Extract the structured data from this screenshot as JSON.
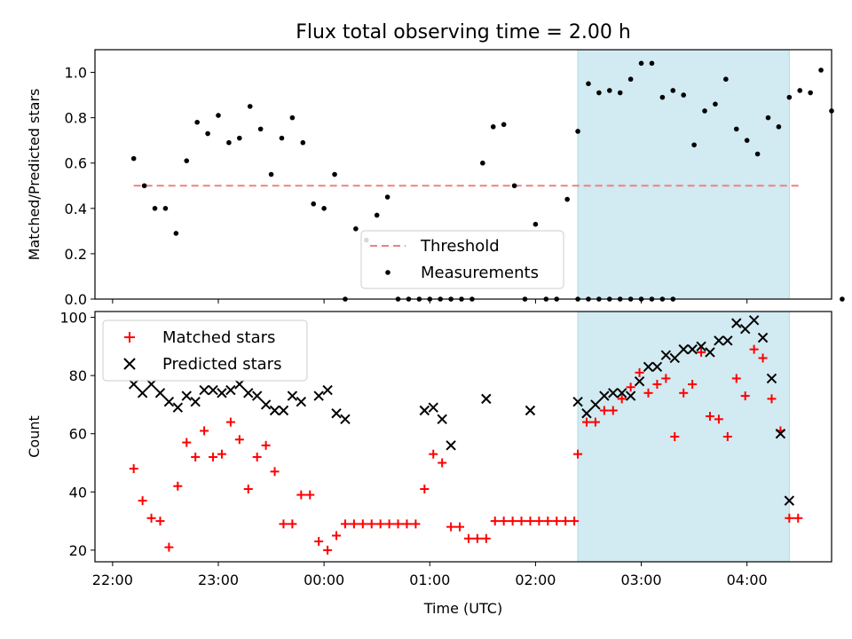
{
  "figure_title": "Flux total observing time = 2.00 h",
  "colors": {
    "shade": "#add8e6",
    "threshold": "#f08080",
    "measurement": "#000000",
    "matched": "#ff0000",
    "predicted": "#000000"
  },
  "chart_data": [
    {
      "type": "scatter",
      "title": "Flux total observing time = 2.00 h",
      "xlabel": "",
      "ylabel": "Matched/Predicted stars",
      "x_axis": "time (UTC), axis from 21:50 to 04:48",
      "ylim": [
        0,
        1.1
      ],
      "yticks": [
        "0.0",
        "0.2",
        "0.4",
        "0.6",
        "0.8",
        "1.0"
      ],
      "shaded_interval": [
        "02:24",
        "04:24"
      ],
      "threshold": {
        "name": "Threshold",
        "value": 0.5,
        "x_range": [
          "22:12",
          "04:30"
        ]
      },
      "legend": {
        "position": "lower-center",
        "entries": [
          "Threshold",
          "Measurements"
        ]
      },
      "series": [
        {
          "name": "Measurements",
          "points": [
            [
              "22:12",
              0.62
            ],
            [
              "22:18",
              0.5
            ],
            [
              "22:24",
              0.4
            ],
            [
              "22:30",
              0.4
            ],
            [
              "22:36",
              0.29
            ],
            [
              "22:42",
              0.61
            ],
            [
              "22:48",
              0.78
            ],
            [
              "22:54",
              0.73
            ],
            [
              "23:00",
              0.81
            ],
            [
              "23:06",
              0.69
            ],
            [
              "23:12",
              0.71
            ],
            [
              "23:18",
              0.85
            ],
            [
              "23:24",
              0.75
            ],
            [
              "23:30",
              0.55
            ],
            [
              "23:36",
              0.71
            ],
            [
              "23:42",
              0.8
            ],
            [
              "23:48",
              0.69
            ],
            [
              "23:54",
              0.42
            ],
            [
              "00:00",
              0.4
            ],
            [
              "00:06",
              0.55
            ],
            [
              "00:12",
              0.0
            ],
            [
              "00:18",
              0.31
            ],
            [
              "00:24",
              0.26
            ],
            [
              "00:30",
              0.37
            ],
            [
              "00:36",
              0.45
            ],
            [
              "00:42",
              0.0
            ],
            [
              "00:48",
              0.0
            ],
            [
              "00:54",
              0.0
            ],
            [
              "01:00",
              0.0
            ],
            [
              "01:06",
              0.0
            ],
            [
              "01:12",
              0.0
            ],
            [
              "01:18",
              0.0
            ],
            [
              "01:24",
              0.0
            ],
            [
              "01:30",
              0.6
            ],
            [
              "01:36",
              0.76
            ],
            [
              "01:42",
              0.77
            ],
            [
              "01:48",
              0.5
            ],
            [
              "01:54",
              0.0
            ],
            [
              "02:00",
              0.33
            ],
            [
              "02:06",
              0.0
            ],
            [
              "02:12",
              0.0
            ],
            [
              "02:18",
              0.44
            ],
            [
              "02:24",
              0.0
            ],
            [
              "02:30",
              0.0
            ],
            [
              "02:36",
              0.0
            ],
            [
              "02:42",
              0.0
            ],
            [
              "02:48",
              0.0
            ],
            [
              "02:54",
              0.0
            ],
            [
              "03:00",
              0.0
            ],
            [
              "03:06",
              0.0
            ],
            [
              "03:12",
              0.0
            ],
            [
              "03:18",
              0.0
            ],
            [
              "02:24",
              0.74
            ],
            [
              "02:30",
              0.95
            ],
            [
              "02:36",
              0.91
            ],
            [
              "02:42",
              0.92
            ],
            [
              "02:48",
              0.91
            ],
            [
              "02:54",
              0.97
            ],
            [
              "03:00",
              1.04
            ],
            [
              "03:06",
              1.04
            ],
            [
              "03:12",
              0.89
            ],
            [
              "03:18",
              0.92
            ],
            [
              "03:24",
              0.9
            ],
            [
              "03:30",
              0.68
            ],
            [
              "03:36",
              0.83
            ],
            [
              "03:42",
              0.86
            ],
            [
              "03:48",
              0.97
            ],
            [
              "03:54",
              0.75
            ],
            [
              "04:00",
              0.7
            ],
            [
              "04:06",
              0.64
            ],
            [
              "04:12",
              0.8
            ],
            [
              "04:18",
              0.76
            ],
            [
              "04:24",
              0.89
            ],
            [
              "04:30",
              0.92
            ],
            [
              "04:36",
              0.91
            ],
            [
              "04:42",
              1.01
            ],
            [
              "04:48",
              0.83
            ],
            [
              "04:54",
              0.0
            ]
          ]
        }
      ]
    },
    {
      "type": "scatter",
      "title": "",
      "xlabel": "Time (UTC)",
      "ylabel": "Count",
      "ylim": [
        16,
        102
      ],
      "yticks": [
        "20",
        "40",
        "60",
        "80",
        "100"
      ],
      "xticks": [
        "22:00",
        "23:00",
        "00:00",
        "01:00",
        "02:00",
        "03:00",
        "04:00"
      ],
      "shaded_interval": [
        "02:24",
        "04:24"
      ],
      "legend": {
        "position": "upper-left",
        "entries": [
          "Matched stars",
          "Predicted stars"
        ]
      },
      "series": [
        {
          "name": "Matched stars",
          "marker": "plus",
          "points": [
            [
              "22:12",
              48
            ],
            [
              "22:17",
              37
            ],
            [
              "22:22",
              31
            ],
            [
              "22:27",
              30
            ],
            [
              "22:32",
              21
            ],
            [
              "22:37",
              42
            ],
            [
              "22:42",
              57
            ],
            [
              "22:47",
              52
            ],
            [
              "22:52",
              61
            ],
            [
              "22:57",
              52
            ],
            [
              "23:02",
              53
            ],
            [
              "23:07",
              64
            ],
            [
              "23:12",
              58
            ],
            [
              "23:17",
              41
            ],
            [
              "23:22",
              52
            ],
            [
              "23:27",
              56
            ],
            [
              "23:32",
              47
            ],
            [
              "23:37",
              29
            ],
            [
              "23:42",
              29
            ],
            [
              "23:47",
              39
            ],
            [
              "23:52",
              39
            ],
            [
              "23:57",
              23
            ],
            [
              "00:02",
              20
            ],
            [
              "00:07",
              25
            ],
            [
              "00:12",
              29
            ],
            [
              "00:17",
              29
            ],
            [
              "00:22",
              29
            ],
            [
              "00:27",
              29
            ],
            [
              "00:32",
              29
            ],
            [
              "00:37",
              29
            ],
            [
              "00:42",
              29
            ],
            [
              "00:47",
              29
            ],
            [
              "00:52",
              29
            ],
            [
              "00:57",
              41
            ],
            [
              "01:02",
              53
            ],
            [
              "01:07",
              50
            ],
            [
              "01:12",
              28
            ],
            [
              "01:17",
              28
            ],
            [
              "01:22",
              24
            ],
            [
              "01:27",
              24
            ],
            [
              "01:32",
              24
            ],
            [
              "01:37",
              30
            ],
            [
              "01:42",
              30
            ],
            [
              "01:47",
              30
            ],
            [
              "01:52",
              30
            ],
            [
              "01:57",
              30
            ],
            [
              "02:02",
              30
            ],
            [
              "02:07",
              30
            ],
            [
              "02:12",
              30
            ],
            [
              "02:17",
              30
            ],
            [
              "02:22",
              30
            ],
            [
              "02:24",
              53
            ],
            [
              "02:29",
              64
            ],
            [
              "02:34",
              64
            ],
            [
              "02:39",
              68
            ],
            [
              "02:44",
              68
            ],
            [
              "02:49",
              72
            ],
            [
              "02:54",
              76
            ],
            [
              "02:59",
              81
            ],
            [
              "03:04",
              74
            ],
            [
              "03:09",
              77
            ],
            [
              "03:14",
              79
            ],
            [
              "03:19",
              59
            ],
            [
              "03:24",
              74
            ],
            [
              "03:29",
              77
            ],
            [
              "03:34",
              88
            ],
            [
              "03:39",
              66
            ],
            [
              "03:44",
              65
            ],
            [
              "03:49",
              59
            ],
            [
              "03:54",
              79
            ],
            [
              "03:59",
              73
            ],
            [
              "04:04",
              89
            ],
            [
              "04:09",
              86
            ],
            [
              "04:14",
              72
            ],
            [
              "04:19",
              61
            ],
            [
              "04:24",
              31
            ],
            [
              "04:29",
              31
            ]
          ]
        },
        {
          "name": "Predicted stars",
          "marker": "x",
          "points": [
            [
              "22:12",
              77
            ],
            [
              "22:17",
              74
            ],
            [
              "22:22",
              77
            ],
            [
              "22:27",
              74
            ],
            [
              "22:32",
              71
            ],
            [
              "22:37",
              69
            ],
            [
              "22:42",
              73
            ],
            [
              "22:47",
              71
            ],
            [
              "22:52",
              75
            ],
            [
              "22:57",
              75
            ],
            [
              "23:02",
              74
            ],
            [
              "23:07",
              75
            ],
            [
              "23:12",
              77
            ],
            [
              "23:17",
              74
            ],
            [
              "23:22",
              73
            ],
            [
              "23:27",
              70
            ],
            [
              "23:32",
              68
            ],
            [
              "23:37",
              68
            ],
            [
              "23:42",
              73
            ],
            [
              "23:47",
              71
            ],
            [
              "23:57",
              73
            ],
            [
              "00:02",
              75
            ],
            [
              "00:07",
              67
            ],
            [
              "00:12",
              65
            ],
            [
              "00:57",
              68
            ],
            [
              "01:02",
              69
            ],
            [
              "01:07",
              65
            ],
            [
              "01:12",
              56
            ],
            [
              "01:32",
              72
            ],
            [
              "01:57",
              68
            ],
            [
              "02:24",
              71
            ],
            [
              "02:29",
              67
            ],
            [
              "02:34",
              70
            ],
            [
              "02:39",
              73
            ],
            [
              "02:44",
              74
            ],
            [
              "02:49",
              74
            ],
            [
              "02:54",
              73
            ],
            [
              "02:59",
              78
            ],
            [
              "03:04",
              83
            ],
            [
              "03:09",
              83
            ],
            [
              "03:14",
              87
            ],
            [
              "03:19",
              86
            ],
            [
              "03:24",
              89
            ],
            [
              "03:29",
              89
            ],
            [
              "03:34",
              90
            ],
            [
              "03:39",
              88
            ],
            [
              "03:44",
              92
            ],
            [
              "03:49",
              92
            ],
            [
              "03:54",
              98
            ],
            [
              "03:59",
              96
            ],
            [
              "04:04",
              99
            ],
            [
              "04:09",
              93
            ],
            [
              "04:14",
              79
            ],
            [
              "04:19",
              60
            ],
            [
              "04:24",
              37
            ]
          ]
        }
      ]
    }
  ]
}
